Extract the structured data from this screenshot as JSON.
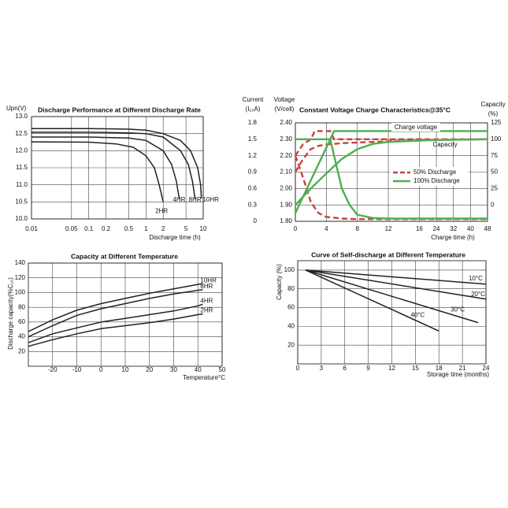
{
  "chart_data": [
    {
      "type": "line",
      "title": "Discharge Performance at Different Discharge Rate",
      "ylabel": [
        "Upn(V)"
      ],
      "xlabel": "Discharge  time (h)",
      "xscale": "log",
      "xlim": [
        0.01,
        10
      ],
      "xticks": [
        0.01,
        0.05,
        0.1,
        0.2,
        0.5,
        1,
        2,
        5,
        10
      ],
      "ylim": [
        10,
        13
      ],
      "yticks": [
        {
          "value": 10,
          "label": "10.0"
        },
        10.5,
        {
          "value": 11,
          "label": "11.0"
        },
        11.5,
        {
          "value": 12,
          "label": "12.0"
        },
        12.5,
        {
          "value": 13,
          "label": "13.0"
        }
      ],
      "grid": true,
      "series": [
        {
          "name": "2HR",
          "color": "#222222",
          "x": [
            0.01,
            0.1,
            0.3,
            0.6,
            1,
            1.4,
            1.7,
            2
          ],
          "values": [
            12.26,
            12.25,
            12.2,
            12.1,
            11.85,
            11.5,
            11.0,
            10.5
          ]
        },
        {
          "name": "4HR",
          "color": "#222222",
          "x": [
            0.01,
            0.1,
            0.5,
            1,
            2,
            2.8,
            3.4,
            3.8
          ],
          "values": [
            12.4,
            12.4,
            12.37,
            12.3,
            12.0,
            11.6,
            11.1,
            10.6
          ]
        },
        {
          "name": "8HR",
          "color": "#222222",
          "x": [
            0.01,
            0.1,
            0.5,
            1,
            2,
            4,
            5.5,
            6.5,
            7.2
          ],
          "values": [
            12.54,
            12.54,
            12.52,
            12.5,
            12.4,
            12.0,
            11.6,
            11.1,
            10.6
          ]
        },
        {
          "name": "10HR",
          "color": "#222222",
          "x": [
            0.01,
            0.1,
            0.5,
            1,
            2,
            4,
            6,
            8,
            9,
            9.3
          ],
          "values": [
            12.65,
            12.65,
            12.63,
            12.6,
            12.5,
            12.3,
            12.0,
            11.5,
            11.0,
            10.6
          ]
        }
      ]
    },
    {
      "type": "line",
      "title": "Constant Voltage Charge Characteristics@35°C",
      "xlabel": "Charge time (h)",
      "xlim": [
        0,
        48
      ],
      "xticks": [
        0,
        4,
        8,
        12,
        16,
        24,
        32,
        40,
        48
      ],
      "ylabel": [
        "Voltage",
        "(V/cell)"
      ],
      "ylim": [
        1.8,
        2.4
      ],
      "yticks": [
        {
          "value": 1.8,
          "label": "1.80"
        },
        {
          "value": 1.9,
          "label": "1.90"
        },
        {
          "value": 2.0,
          "label": "2.00"
        },
        {
          "value": 2.1,
          "label": "2.10"
        },
        {
          "value": 2.2,
          "label": "2.20"
        },
        {
          "value": 2.3,
          "label": "2.30"
        },
        {
          "value": 2.4,
          "label": "2.40"
        }
      ],
      "y2label": [
        "Current",
        "(I₁₀A)"
      ],
      "y2lim": [
        0,
        1.8
      ],
      "y2ticks": [
        0,
        0.3,
        0.6,
        0.9,
        1.2,
        1.5,
        1.8
      ],
      "y3label": [
        "Capacity",
        "(%)"
      ],
      "y3lim": [
        -25,
        125
      ],
      "y3ticks": [
        0,
        25,
        50,
        75,
        100,
        125
      ],
      "annotations": [
        "Charge voltage",
        "Capacity"
      ],
      "grid": true,
      "legend": "lower right",
      "series": [
        {
          "name": "50% Discharge",
          "color": "#c9423b",
          "dash": true,
          "curves": [
            {
              "axis": "y",
              "x": [
                0,
                1,
                2,
                2.5,
                3,
                4.5,
                5,
                48
              ],
              "values": [
                2.2,
                2.27,
                2.3,
                2.35,
                2.35,
                2.35,
                2.3,
                2.3
              ]
            },
            {
              "axis": "y2",
              "x": [
                0,
                1,
                2,
                3,
                4,
                6,
                8,
                48
              ],
              "values": [
                1.2,
                0.8,
                0.35,
                0.15,
                0.08,
                0.05,
                0.04,
                0.04
              ]
            },
            {
              "axis": "y3",
              "x": [
                0,
                1,
                2,
                3,
                4,
                6,
                8,
                12,
                16,
                24,
                48
              ],
              "values": [
                50,
                70,
                85,
                90,
                92,
                94,
                95,
                97,
                98,
                99,
                100
              ]
            }
          ]
        },
        {
          "name": "100% Discharge",
          "color": "#4caf50",
          "dash": false,
          "curves": [
            {
              "axis": "y",
              "x": [
                0,
                1,
                2,
                3,
                4,
                5,
                48
              ],
              "values": [
                1.85,
                1.95,
                2.05,
                2.15,
                2.25,
                2.35,
                2.35
              ]
            },
            {
              "axis": "y2",
              "x": [
                0,
                4.5,
                5,
                6,
                7,
                8,
                10,
                12,
                48
              ],
              "values": [
                1.5,
                1.5,
                1.2,
                0.6,
                0.3,
                0.12,
                0.06,
                0.05,
                0.05
              ]
            },
            {
              "axis": "y3",
              "x": [
                0,
                2,
                4,
                6,
                8,
                10,
                12,
                16,
                24,
                48
              ],
              "values": [
                0,
                25,
                48,
                70,
                85,
                93,
                96,
                98,
                99,
                100
              ]
            }
          ]
        }
      ]
    },
    {
      "type": "line",
      "title": "Capacity at Different Temperature",
      "ylabel": [
        "Discharge capacity(%C₁₀)"
      ],
      "xlabel": "Temperature°C",
      "xlim": [
        -30,
        50
      ],
      "xticks": [
        -20,
        -10,
        0,
        10,
        20,
        30,
        40,
        50
      ],
      "ylim": [
        0,
        140
      ],
      "yticks": [
        20,
        40,
        60,
        80,
        100,
        120,
        140
      ],
      "grid": true,
      "series": [
        {
          "name": "10HR",
          "color": "#222222",
          "x": [
            -30,
            -20,
            -10,
            0,
            10,
            20,
            30,
            40,
            42
          ],
          "values": [
            47,
            63,
            76,
            85,
            92,
            99,
            105,
            111,
            112
          ]
        },
        {
          "name": "8HR",
          "color": "#222222",
          "x": [
            -30,
            -20,
            -10,
            0,
            10,
            20,
            30,
            40,
            42
          ],
          "values": [
            40,
            55,
            69,
            78,
            85,
            92,
            98,
            103,
            104
          ]
        },
        {
          "name": "4HR",
          "color": "#222222",
          "x": [
            -30,
            -20,
            -10,
            0,
            10,
            20,
            30,
            40,
            42
          ],
          "values": [
            32,
            44,
            52,
            60,
            65,
            70,
            75,
            82,
            84
          ]
        },
        {
          "name": "2HR",
          "color": "#222222",
          "x": [
            -30,
            -20,
            -10,
            0,
            10,
            20,
            30,
            40,
            42
          ],
          "values": [
            27,
            36,
            44,
            51,
            55,
            59,
            64,
            70,
            71
          ]
        }
      ]
    },
    {
      "type": "line",
      "title": "Curve of Self-discharge at Different Temperature",
      "ylabel": [
        "Capacity (%)"
      ],
      "xlabel": "Storage time (months)",
      "xlim": [
        0,
        24
      ],
      "xticks": [
        0,
        3,
        6,
        9,
        12,
        15,
        18,
        21,
        24
      ],
      "ylim": [
        0,
        110
      ],
      "yticks": [
        20,
        40,
        60,
        80,
        100
      ],
      "grid": true,
      "series": [
        {
          "name": "10°C",
          "color": "#222222",
          "x": [
            1,
            24
          ],
          "values": [
            100,
            85
          ]
        },
        {
          "name": "20°C",
          "color": "#222222",
          "x": [
            1,
            24
          ],
          "values": [
            100,
            69
          ]
        },
        {
          "name": "30°C",
          "color": "#222222",
          "x": [
            1,
            23
          ],
          "values": [
            100,
            44
          ]
        },
        {
          "name": "40°C",
          "color": "#222222",
          "x": [
            1,
            18
          ],
          "values": [
            100,
            35
          ]
        }
      ]
    }
  ]
}
